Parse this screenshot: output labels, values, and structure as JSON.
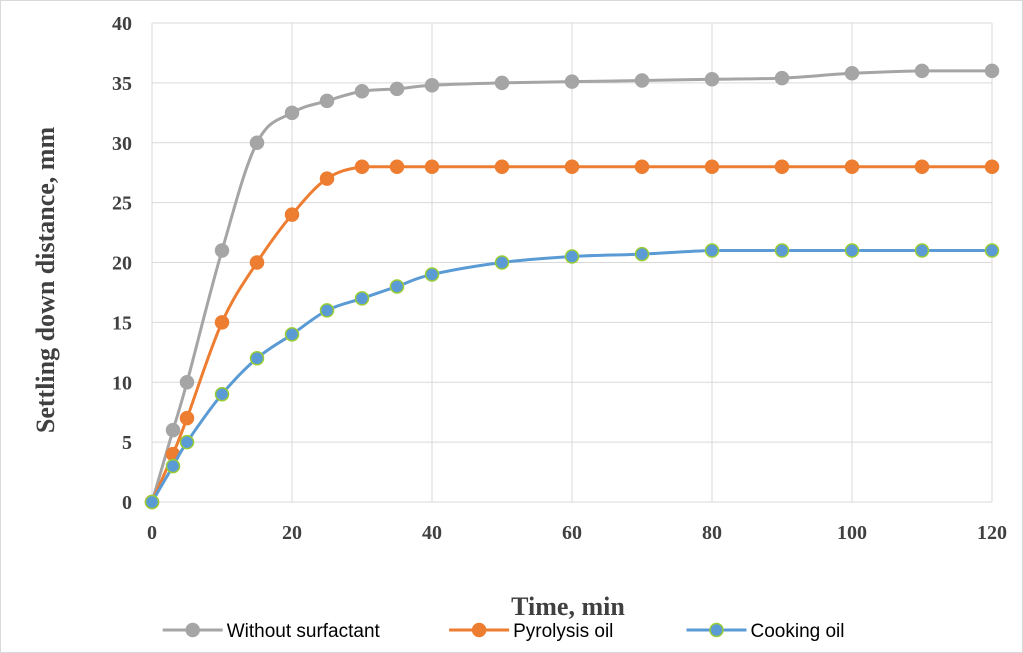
{
  "chart_data": {
    "type": "line",
    "title": "",
    "xlabel": "Time, min",
    "ylabel": "Settling down distance, mm",
    "xlim": [
      0,
      120
    ],
    "ylim": [
      0,
      40
    ],
    "x_ticks": [
      0,
      20,
      40,
      60,
      80,
      100,
      120
    ],
    "y_ticks": [
      0,
      5,
      10,
      15,
      20,
      25,
      30,
      35,
      40
    ],
    "grid": true,
    "legend_position": "bottom",
    "series": [
      {
        "name": "Without surfactant",
        "color": "#A5A5A5",
        "x": [
          0,
          3,
          5,
          10,
          15,
          20,
          25,
          30,
          35,
          40,
          50,
          60,
          70,
          80,
          90,
          100,
          110,
          120
        ],
        "y": [
          0,
          6,
          10,
          21,
          30,
          32.5,
          33.5,
          34.3,
          34.5,
          34.8,
          35,
          35.1,
          35.2,
          35.3,
          35.4,
          35.8,
          36,
          36
        ]
      },
      {
        "name": "Pyrolysis oil",
        "color": "#ED7D31",
        "x": [
          0,
          3,
          5,
          10,
          15,
          20,
          25,
          30,
          35,
          40,
          50,
          60,
          70,
          80,
          90,
          100,
          110,
          120
        ],
        "y": [
          0,
          4,
          7,
          15,
          20,
          24,
          27,
          28,
          28,
          28,
          28,
          28,
          28,
          28,
          28,
          28,
          28,
          28
        ]
      },
      {
        "name": "Cooking oil",
        "color": "#5B9BD5",
        "marker_edge": "#9ACD32",
        "x": [
          0,
          3,
          5,
          10,
          15,
          20,
          25,
          30,
          35,
          40,
          50,
          60,
          70,
          80,
          90,
          100,
          110,
          120
        ],
        "y": [
          0,
          3,
          5,
          9,
          12,
          14,
          16,
          17,
          18,
          19,
          20,
          20.5,
          20.7,
          21,
          21,
          21,
          21,
          21
        ]
      }
    ]
  }
}
